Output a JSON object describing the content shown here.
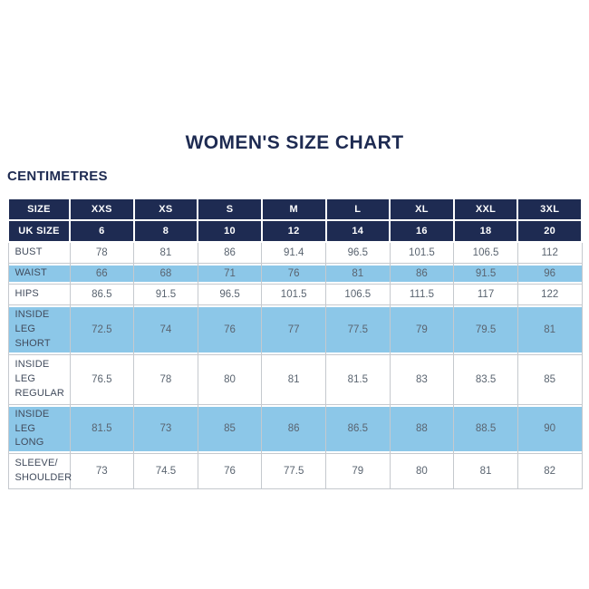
{
  "title": "WOMEN'S SIZE CHART",
  "subtitle": "CENTIMETRES",
  "colors": {
    "navy": "#1e2b52",
    "highlight_blue": "#8cc7e8",
    "body_text": "#5a6470",
    "border_gray": "#c5c9ce",
    "background": "#ffffff"
  },
  "chart_data": {
    "type": "table",
    "title": "WOMEN'S SIZE CHART",
    "units": "CENTIMETRES",
    "header": [
      "SIZE",
      "XXS",
      "XS",
      "S",
      "M",
      "L",
      "XL",
      "XXL",
      "3XL"
    ],
    "uk_row": [
      "UK SIZE",
      "6",
      "8",
      "10",
      "12",
      "14",
      "16",
      "18",
      "20"
    ],
    "rows": [
      {
        "label": "BUST",
        "highlight": false,
        "values": [
          "78",
          "81",
          "86",
          "91.4",
          "96.5",
          "101.5",
          "106.5",
          "112"
        ]
      },
      {
        "label": "WAIST",
        "highlight": true,
        "values": [
          "66",
          "68",
          "71",
          "76",
          "81",
          "86",
          "91.5",
          "96"
        ]
      },
      {
        "label": "HIPS",
        "highlight": false,
        "values": [
          "86.5",
          "91.5",
          "96.5",
          "101.5",
          "106.5",
          "111.5",
          "117",
          "122"
        ]
      },
      {
        "label": "INSIDE LEG\nSHORT",
        "highlight": true,
        "values": [
          "72.5",
          "74",
          "76",
          "77",
          "77.5",
          "79",
          "79.5",
          "81"
        ]
      },
      {
        "label": "INSIDE LEG\nREGULAR",
        "highlight": false,
        "values": [
          "76.5",
          "78",
          "80",
          "81",
          "81.5",
          "83",
          "83.5",
          "85"
        ]
      },
      {
        "label": "INSIDE LEG\nLONG",
        "highlight": true,
        "values": [
          "81.5",
          "73",
          "85",
          "86",
          "86.5",
          "88",
          "88.5",
          "90"
        ]
      },
      {
        "label": "SLEEVE/\nSHOULDER",
        "highlight": false,
        "values": [
          "73",
          "74.5",
          "76",
          "77.5",
          "79",
          "80",
          "81",
          "82"
        ]
      }
    ]
  }
}
